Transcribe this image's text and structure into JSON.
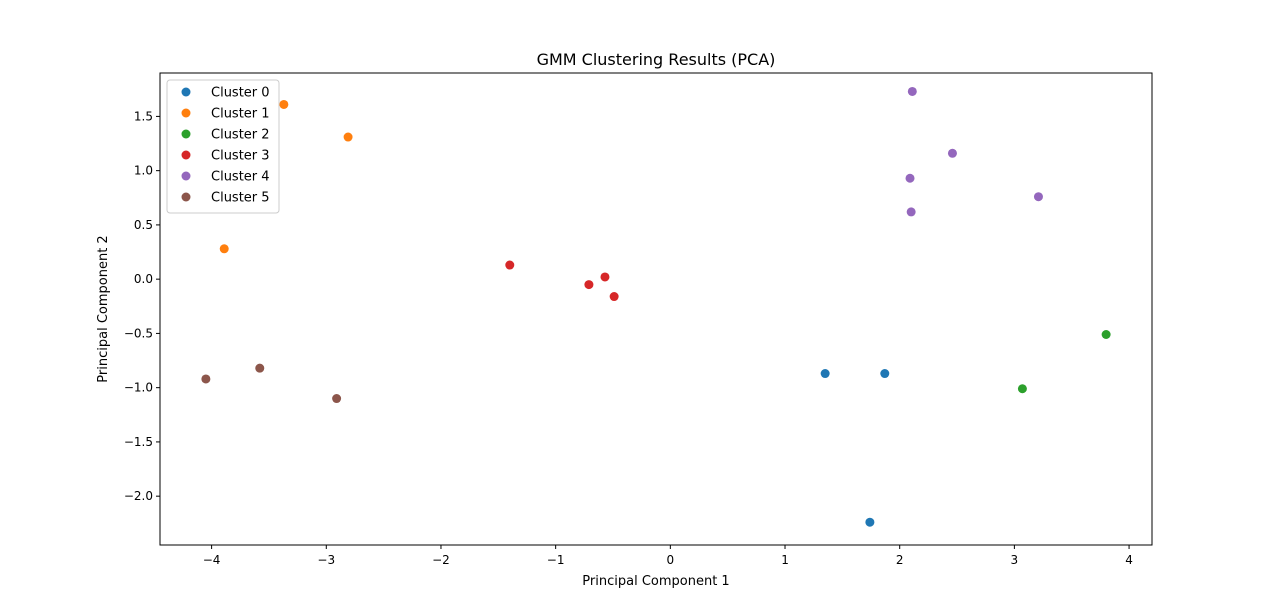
{
  "chart_data": {
    "type": "scatter",
    "title": "GMM Clustering Results (PCA)",
    "xlabel": "Principal Component 1",
    "ylabel": "Principal Component 2",
    "xlim": [
      -4.45,
      4.2
    ],
    "ylim": [
      -2.45,
      1.9
    ],
    "xticks": [
      -4,
      -3,
      -2,
      -1,
      0,
      1,
      2,
      3,
      4
    ],
    "yticks": [
      -2.0,
      -1.5,
      -1.0,
      -0.5,
      0.0,
      0.5,
      1.0,
      1.5
    ],
    "xtick_labels": [
      "−4",
      "−3",
      "−2",
      "−1",
      "0",
      "1",
      "2",
      "3",
      "4"
    ],
    "ytick_labels": [
      "−2.0",
      "−1.5",
      "−1.0",
      "−0.5",
      "0.0",
      "0.5",
      "1.0",
      "1.5"
    ],
    "grid": false,
    "legend_position": "top-left",
    "series": [
      {
        "name": "Cluster 0",
        "color": "#1f77b4",
        "points": [
          [
            1.35,
            -0.87
          ],
          [
            1.87,
            -0.87
          ],
          [
            1.74,
            -2.24
          ]
        ]
      },
      {
        "name": "Cluster 1",
        "color": "#ff7f0e",
        "points": [
          [
            -3.37,
            1.61
          ],
          [
            -2.81,
            1.31
          ],
          [
            -3.89,
            0.28
          ]
        ]
      },
      {
        "name": "Cluster 2",
        "color": "#2ca02c",
        "points": [
          [
            3.8,
            -0.51
          ],
          [
            3.07,
            -1.01
          ]
        ]
      },
      {
        "name": "Cluster 3",
        "color": "#d62728",
        "points": [
          [
            -1.4,
            0.13
          ],
          [
            -0.57,
            0.02
          ],
          [
            -0.71,
            -0.05
          ],
          [
            -0.49,
            -0.16
          ]
        ]
      },
      {
        "name": "Cluster 4",
        "color": "#9467bd",
        "points": [
          [
            2.11,
            1.73
          ],
          [
            2.46,
            1.16
          ],
          [
            2.09,
            0.93
          ],
          [
            3.21,
            0.76
          ],
          [
            2.1,
            0.62
          ]
        ]
      },
      {
        "name": "Cluster 5",
        "color": "#8c564b",
        "points": [
          [
            -4.05,
            -0.92
          ],
          [
            -3.58,
            -0.82
          ],
          [
            -2.91,
            -1.1
          ]
        ]
      }
    ]
  }
}
